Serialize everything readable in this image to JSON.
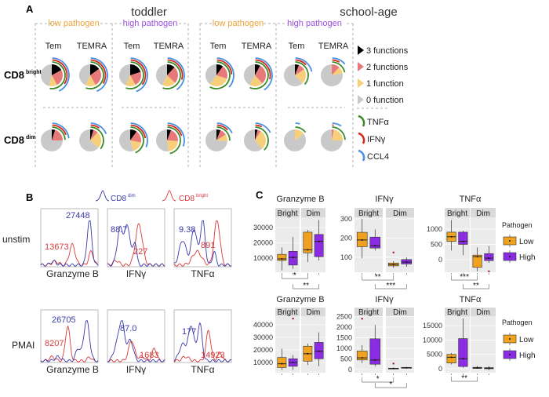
{
  "panel_labels": {
    "a": "A",
    "b": "B",
    "c": "C"
  },
  "colors": {
    "three_functions": "#000000",
    "two_functions": "#e8797b",
    "one_function": "#f7cf7a",
    "zero_function": "#c9c9c9",
    "tnfa": "#3d8a2a",
    "ifng": "#d2281a",
    "ccl4": "#4a8fe3",
    "low_pathogen": "#eda33a",
    "high_pathogen": "#9a4fe0",
    "cd8dim": "#3a3aa8",
    "cd8bright": "#d83a3a",
    "box_low": "#efa21f",
    "box_high": "#8b2be2",
    "plot_bg": "#ebebeb",
    "strip_bg": "#d9d9d9"
  },
  "chart_data": [
    {
      "panel": "A",
      "type": "pie",
      "age_groups": [
        "toddler",
        "school-age"
      ],
      "pathogen_groups": [
        "low pathogen",
        "high pathogen",
        "low pathogen",
        "high pathogen"
      ],
      "subsets": [
        "Tem",
        "TEMRA"
      ],
      "rows": [
        {
          "label": "CD8",
          "sup": "bright"
        },
        {
          "label": "CD8",
          "sup": "dim"
        }
      ],
      "legend": {
        "functions": [
          "3 functions",
          "2 functions",
          "1 function",
          "0 function"
        ],
        "cytokines": [
          "TNFα",
          "IFNγ",
          "CCL4"
        ]
      },
      "slice_order": [
        "3 functions",
        "2 functions",
        "1 function",
        "0 function"
      ],
      "pies": [
        {
          "row": "CD8bright",
          "age": "toddler",
          "pathogen": "low",
          "subset": "Tem",
          "values": [
            0.17,
            0.25,
            0.12,
            0.46
          ]
        },
        {
          "row": "CD8bright",
          "age": "toddler",
          "pathogen": "low",
          "subset": "TEMRA",
          "values": [
            0.15,
            0.27,
            0.15,
            0.43
          ]
        },
        {
          "row": "CD8bright",
          "age": "toddler",
          "pathogen": "high",
          "subset": "Tem",
          "values": [
            0.2,
            0.22,
            0.15,
            0.43
          ]
        },
        {
          "row": "CD8bright",
          "age": "toddler",
          "pathogen": "high",
          "subset": "TEMRA",
          "values": [
            0.12,
            0.25,
            0.2,
            0.43
          ]
        },
        {
          "row": "CD8bright",
          "age": "school-age",
          "pathogen": "low",
          "subset": "Tem",
          "values": [
            0.1,
            0.2,
            0.3,
            0.4
          ]
        },
        {
          "row": "CD8bright",
          "age": "school-age",
          "pathogen": "low",
          "subset": "TEMRA",
          "values": [
            0.08,
            0.3,
            0.2,
            0.42
          ]
        },
        {
          "row": "CD8bright",
          "age": "school-age",
          "pathogen": "high",
          "subset": "Tem",
          "values": [
            0.06,
            0.1,
            0.22,
            0.62
          ]
        },
        {
          "row": "CD8bright",
          "age": "school-age",
          "pathogen": "high",
          "subset": "TEMRA",
          "values": [
            0.0,
            0.12,
            0.1,
            0.78
          ]
        },
        {
          "row": "CD8dim",
          "age": "toddler",
          "pathogen": "low",
          "subset": "Tem",
          "values": [
            0.05,
            0.2,
            0.0,
            0.75
          ]
        },
        {
          "row": "CD8dim",
          "age": "toddler",
          "pathogen": "low",
          "subset": "TEMRA",
          "values": [
            0.05,
            0.07,
            0.25,
            0.63
          ]
        },
        {
          "row": "CD8dim",
          "age": "toddler",
          "pathogen": "high",
          "subset": "Tem",
          "values": [
            0.1,
            0.18,
            0.17,
            0.55
          ]
        },
        {
          "row": "CD8dim",
          "age": "toddler",
          "pathogen": "high",
          "subset": "TEMRA",
          "values": [
            0.06,
            0.2,
            0.22,
            0.52
          ]
        },
        {
          "row": "CD8dim",
          "age": "school-age",
          "pathogen": "low",
          "subset": "Tem",
          "values": [
            0.06,
            0.1,
            0.1,
            0.74
          ]
        },
        {
          "row": "CD8dim",
          "age": "school-age",
          "pathogen": "low",
          "subset": "TEMRA",
          "values": [
            0.04,
            0.05,
            0.3,
            0.61
          ]
        },
        {
          "row": "CD8dim",
          "age": "school-age",
          "pathogen": "high",
          "subset": "Tem",
          "values": [
            0.0,
            0.0,
            0.15,
            0.85
          ]
        },
        {
          "row": "CD8dim",
          "age": "school-age",
          "pathogen": "high",
          "subset": "TEMRA",
          "values": [
            0.0,
            0.03,
            0.22,
            0.75
          ]
        }
      ]
    },
    {
      "panel": "B",
      "type": "line",
      "legend": [
        {
          "label": "CD8",
          "sup": "dim"
        },
        {
          "label": "CD8",
          "sup": "bright"
        }
      ],
      "conditions": [
        "unstim",
        "PMAI"
      ],
      "histograms": [
        {
          "condition": "unstim",
          "marker": "Granzyme B",
          "cd8dim_mfi": "27448",
          "cd8bright_mfi": "13673"
        },
        {
          "condition": "unstim",
          "marker": "IFNγ",
          "cd8dim_mfi": "88.7",
          "cd8bright_mfi": "227"
        },
        {
          "condition": "unstim",
          "marker": "TNFα",
          "cd8dim_mfi": "9.38",
          "cd8bright_mfi": "891"
        },
        {
          "condition": "PMAI",
          "marker": "Granzyme B",
          "cd8dim_mfi": "26705",
          "cd8bright_mfi": "8207"
        },
        {
          "condition": "PMAI",
          "marker": "IFNγ",
          "cd8dim_mfi": "87.0",
          "cd8bright_mfi": "1683"
        },
        {
          "condition": "PMAI",
          "marker": "TNFα",
          "cd8dim_mfi": "177",
          "cd8bright_mfi": "14923"
        }
      ]
    },
    {
      "panel": "C",
      "type": "box",
      "legend": {
        "title": "Pathogen",
        "items": [
          "Low",
          "High"
        ]
      },
      "facets": [
        "Bright",
        "Dim"
      ],
      "plots": [
        {
          "title": "Granzyme B",
          "ylim": [
            800,
            36700
          ],
          "yticks": [
            10000,
            20000,
            30000
          ],
          "ytick_labels": [
            "10000",
            "20000",
            "30000"
          ],
          "boxes": [
            {
              "facet": "Bright",
              "pathogen": "Low",
              "whisker_low": 2000,
              "q1": 8500,
              "median": 9500,
              "q3": 12500,
              "whisker_high": 17000,
              "outliers": []
            },
            {
              "facet": "Bright",
              "pathogen": "High",
              "whisker_low": 3000,
              "q1": 5500,
              "median": 10500,
              "q3": 14500,
              "whisker_high": 24000,
              "outliers": []
            },
            {
              "facet": "Dim",
              "pathogen": "Low",
              "whisker_low": 7500,
              "q1": 13500,
              "median": 15500,
              "q3": 27000,
              "whisker_high": 28500,
              "outliers": []
            },
            {
              "facet": "Dim",
              "pathogen": "High",
              "whisker_low": 8500,
              "q1": 11000,
              "median": 21000,
              "q3": 25500,
              "whisker_high": 35000,
              "outliers": []
            }
          ],
          "significance": [
            {
              "from": 0,
              "to": 2,
              "label": "*"
            },
            {
              "from": 1,
              "to": 3,
              "label": "**"
            }
          ]
        },
        {
          "title": "IFNγ",
          "ylim": [
            22,
            308
          ],
          "yticks": [
            100,
            200,
            300
          ],
          "ytick_labels": [
            "100",
            "200",
            "300"
          ],
          "boxes": [
            {
              "facet": "Bright",
              "pathogen": "Low",
              "whisker_low": 95,
              "q1": 155,
              "median": 190,
              "q3": 230,
              "whisker_high": 300,
              "outliers": []
            },
            {
              "facet": "Bright",
              "pathogen": "High",
              "whisker_low": 135,
              "q1": 148,
              "median": 160,
              "q3": 205,
              "whisker_high": 245,
              "outliers": []
            },
            {
              "facet": "Dim",
              "pathogen": "Low",
              "whisker_low": 45,
              "q1": 55,
              "median": 62,
              "q3": 70,
              "whisker_high": 80,
              "outliers": [
                125
              ]
            },
            {
              "facet": "Dim",
              "pathogen": "High",
              "whisker_low": 50,
              "q1": 65,
              "median": 75,
              "q3": 88,
              "whisker_high": 100,
              "outliers": []
            }
          ],
          "significance": [
            {
              "from": 0,
              "to": 2,
              "label": "**"
            },
            {
              "from": 1,
              "to": 3,
              "label": "***"
            }
          ]
        },
        {
          "title": "TNFα",
          "ylim": [
            -410,
            1385
          ],
          "yticks": [
            0,
            500,
            1000
          ],
          "ytick_labels": [
            "0",
            "500",
            "1000"
          ],
          "boxes": [
            {
              "facet": "Bright",
              "pathogen": "Low",
              "whisker_low": 300,
              "q1": 600,
              "median": 750,
              "q3": 900,
              "whisker_high": 1300,
              "outliers": []
            },
            {
              "facet": "Bright",
              "pathogen": "High",
              "whisker_low": 150,
              "q1": 500,
              "median": 600,
              "q3": 900,
              "whisker_high": 950,
              "outliers": []
            },
            {
              "facet": "Dim",
              "pathogen": "Low",
              "whisker_low": -380,
              "q1": -250,
              "median": 100,
              "q3": 150,
              "whisker_high": 400,
              "outliers": []
            },
            {
              "facet": "Dim",
              "pathogen": "High",
              "whisker_low": -100,
              "q1": -30,
              "median": 50,
              "q3": 200,
              "whisker_high": 450,
              "outliers": [
                -380
              ]
            }
          ],
          "significance": [
            {
              "from": 0,
              "to": 2,
              "label": "***"
            },
            {
              "from": 1,
              "to": 3,
              "label": "**"
            }
          ]
        },
        {
          "title": "Granzyme B",
          "ylim": [
            1900,
            46900
          ],
          "yticks": [
            10000,
            20000,
            30000,
            40000
          ],
          "ytick_labels": [
            "10000",
            "20000",
            "30000",
            "40000"
          ],
          "boxes": [
            {
              "facet": "Bright",
              "pathogen": "Low",
              "whisker_low": 4000,
              "q1": 6000,
              "median": 9000,
              "q3": 14000,
              "whisker_high": 21000,
              "outliers": []
            },
            {
              "facet": "Bright",
              "pathogen": "High",
              "whisker_low": 4000,
              "q1": 7000,
              "median": 10000,
              "q3": 13000,
              "whisker_high": 16000,
              "outliers": [
                45000
              ]
            },
            {
              "facet": "Dim",
              "pathogen": "Low",
              "whisker_low": 8000,
              "q1": 11000,
              "median": 17000,
              "q3": 23000,
              "whisker_high": 25000,
              "outliers": []
            },
            {
              "facet": "Dim",
              "pathogen": "High",
              "whisker_low": 7000,
              "q1": 13000,
              "median": 19000,
              "q3": 26000,
              "whisker_high": 34000,
              "outliers": []
            }
          ],
          "significance": []
        },
        {
          "title": "IFNγ",
          "ylim": [
            -150,
            2520
          ],
          "yticks": [
            0,
            500,
            1000,
            1500,
            2000,
            2500
          ],
          "ytick_labels": [
            "0",
            "500",
            "1000",
            "1500",
            "2000",
            "2500"
          ],
          "boxes": [
            {
              "facet": "Bright",
              "pathogen": "Low",
              "whisker_low": 300,
              "q1": 450,
              "median": 550,
              "q3": 870,
              "whisker_high": 1150,
              "outliers": [
                2400
              ]
            },
            {
              "facet": "Bright",
              "pathogen": "High",
              "whisker_low": 150,
              "q1": 250,
              "median": 450,
              "q3": 1450,
              "whisker_high": 2100,
              "outliers": []
            },
            {
              "facet": "Dim",
              "pathogen": "Low",
              "whisker_low": 20,
              "q1": 30,
              "median": 50,
              "q3": 60,
              "whisker_high": 80,
              "outliers": [
                280
              ]
            },
            {
              "facet": "Dim",
              "pathogen": "High",
              "whisker_low": 40,
              "q1": 60,
              "median": 80,
              "q3": 100,
              "whisker_high": 110,
              "outliers": []
            }
          ],
          "significance": [
            {
              "from": 0,
              "to": 2,
              "label": "*"
            },
            {
              "from": 1,
              "to": 3,
              "label": "*"
            }
          ]
        },
        {
          "title": "TNFα",
          "ylim": [
            -1360,
            18300
          ],
          "yticks": [
            0,
            5000,
            10000,
            15000
          ],
          "ytick_labels": [
            "0",
            "5000",
            "10000",
            "15000"
          ],
          "boxes": [
            {
              "facet": "Bright",
              "pathogen": "Low",
              "whisker_low": 1500,
              "q1": 2000,
              "median": 4000,
              "q3": 5000,
              "whisker_high": 5500,
              "outliers": []
            },
            {
              "facet": "Bright",
              "pathogen": "High",
              "whisker_low": 300,
              "q1": 800,
              "median": 3500,
              "q3": 10500,
              "whisker_high": 17500,
              "outliers": []
            },
            {
              "facet": "Dim",
              "pathogen": "Low",
              "whisker_low": 0,
              "q1": 100,
              "median": 300,
              "q3": 500,
              "whisker_high": 1000,
              "outliers": []
            },
            {
              "facet": "Dim",
              "pathogen": "High",
              "whisker_low": -500,
              "q1": 0,
              "median": 200,
              "q3": 400,
              "whisker_high": 900,
              "outliers": []
            }
          ],
          "significance": [
            {
              "from": 0,
              "to": 2,
              "label": "**"
            }
          ]
        }
      ]
    }
  ]
}
